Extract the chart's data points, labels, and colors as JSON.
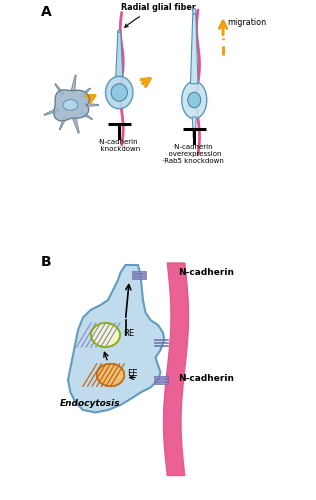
{
  "panel_A_label": "A",
  "panel_B_label": "B",
  "radial_glial_fiber_label": "Radial glial fiber",
  "migration_label": "migration",
  "n_cadherin_knockdown": "·N-cadherin\n  knockdown",
  "n_cadherin_overexpression": "·N-cadherin\n  overexpression\n·Rab5 knockdown",
  "RE_label": "RE",
  "EE_label": "EE",
  "endocytosis_label": "Endocytosis",
  "n_cadherin_top": "N-cadherin",
  "n_cadherin_bottom": "N-cadherin",
  "cell_fill": "#b8d8ea",
  "cell_edge": "#5090b8",
  "cell_fill2": "#c8e4f0",
  "nucleus_fill": "#90c8e0",
  "nucleus_edge": "#4080a8",
  "multipolar_fill": "#a0b8cc",
  "multipolar_edge": "#607888",
  "radial_fiber_color": "#e8508a",
  "orange_arrow": "#f0a010",
  "RE_fill": "#fffff0",
  "RE_edge": "#a0c040",
  "EE_fill": "#f8c880",
  "EE_edge": "#c87020",
  "endosome_stripe": "#c87030",
  "ncadherin_block": "#9090c8",
  "background": "white"
}
